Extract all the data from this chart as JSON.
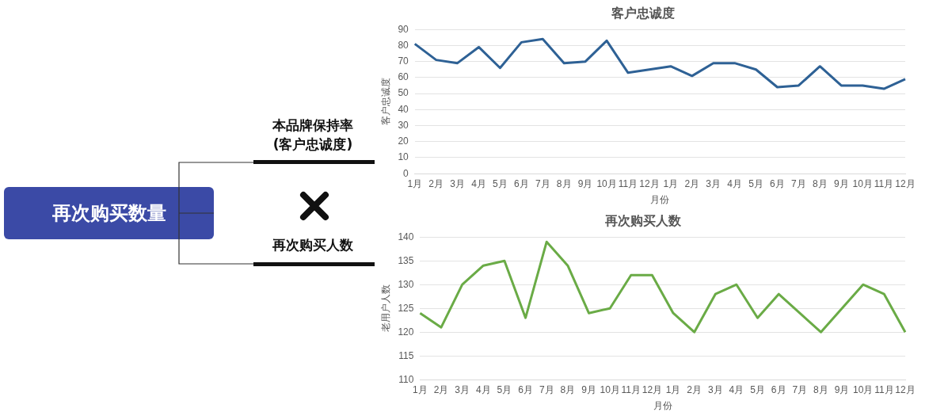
{
  "chart_data": [
    {
      "type": "other",
      "annotations": [
        "再次购买数量",
        "本品牌保持率\n(客户忠诚度)",
        "再次购买人数"
      ]
    },
    {
      "type": "line",
      "title": "客户忠诚度",
      "xlabel": "月份",
      "ylabel": "客户忠诚度",
      "categories": [
        "1月",
        "2月",
        "3月",
        "4月",
        "5月",
        "6月",
        "7月",
        "8月",
        "9月",
        "10月",
        "11月",
        "12月",
        "1月",
        "2月",
        "3月",
        "4月",
        "5月",
        "6月",
        "7月",
        "8月",
        "9月",
        "10月",
        "11月",
        "12月"
      ],
      "series": [
        {
          "color": "#2e6195",
          "values": [
            81,
            71,
            69,
            79,
            66,
            82,
            84,
            69,
            70,
            83,
            63,
            65,
            67,
            61,
            69,
            69,
            65,
            54,
            55,
            67,
            55,
            55,
            53,
            59
          ]
        }
      ],
      "ylim": [
        0,
        90
      ],
      "yticks": [
        0,
        10,
        20,
        30,
        40,
        50,
        60,
        70,
        80,
        90
      ],
      "grid": "y",
      "legend": false,
      "marker": "none",
      "line_style": "solid"
    },
    {
      "type": "line",
      "title": "再次购买人数",
      "xlabel": "月份",
      "ylabel": "老用户人数",
      "categories": [
        "1月",
        "2月",
        "3月",
        "4月",
        "5月",
        "6月",
        "7月",
        "8月",
        "9月",
        "10月",
        "11月",
        "12月",
        "1月",
        "2月",
        "3月",
        "4月",
        "5月",
        "6月",
        "7月",
        "8月",
        "9月",
        "10月",
        "11月",
        "12月"
      ],
      "series": [
        {
          "color": "#6aab46",
          "values": [
            124,
            121,
            130,
            134,
            135,
            123,
            139,
            134,
            124,
            125,
            132,
            132,
            124,
            120,
            128,
            130,
            123,
            128,
            124,
            120,
            125,
            130,
            128,
            120
          ]
        }
      ],
      "ylim": [
        110,
        140
      ],
      "yticks": [
        110,
        115,
        120,
        125,
        130,
        135,
        140
      ],
      "grid": "y",
      "legend": false,
      "marker": "none",
      "line_style": "solid"
    }
  ]
}
